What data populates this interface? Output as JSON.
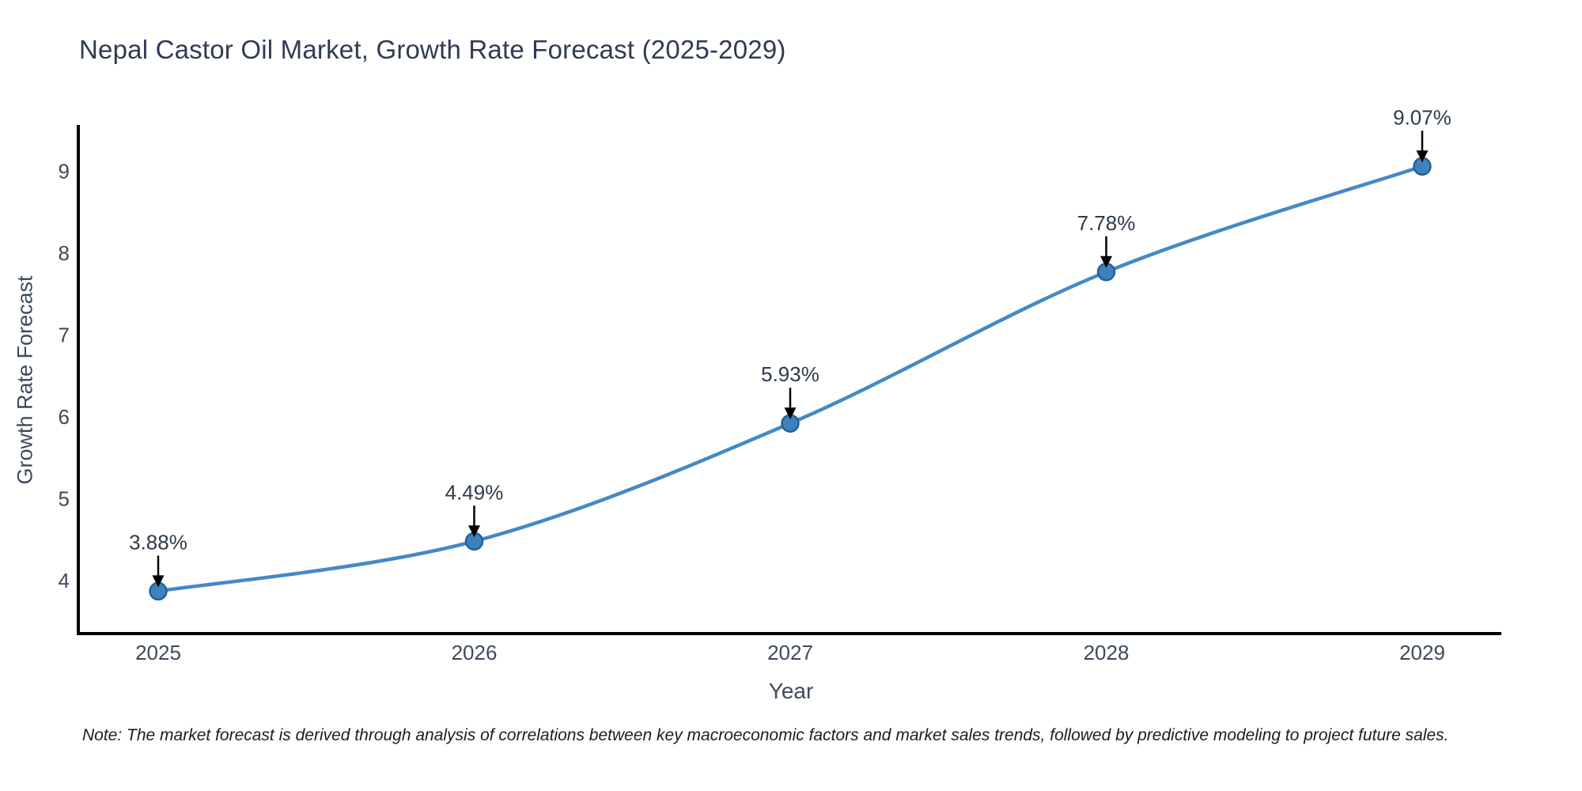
{
  "title": "Nepal Castor Oil Market, Growth Rate Forecast (2025-2029)",
  "note": "Note: The market forecast is derived through analysis of correlations between key macroeconomic factors and market sales trends, followed by predictive modeling to project future sales.",
  "chart_data": {
    "type": "line",
    "title": "Nepal Castor Oil Market, Growth Rate Forecast (2025-2029)",
    "xlabel": "Year",
    "ylabel": "Growth Rate Forecast",
    "categories": [
      "2025",
      "2026",
      "2027",
      "2028",
      "2029"
    ],
    "series": [
      {
        "name": "Growth Rate Forecast",
        "values": [
          3.88,
          4.49,
          5.93,
          7.78,
          9.07
        ]
      }
    ],
    "point_labels": [
      "3.88%",
      "4.49%",
      "5.93%",
      "7.78%",
      "9.07%"
    ],
    "yticks": [
      4,
      5,
      6,
      7,
      8,
      9
    ],
    "ylim": [
      3.4,
      9.6
    ],
    "grid": false,
    "legend": false,
    "line_shape": "spline",
    "markers": true,
    "annotations_with_arrows": true
  },
  "colors": {
    "background": "#ffffff",
    "title": "#2f3b52",
    "axis_line": "#000000",
    "tick_label": "#3d4a5c",
    "line": "#4489c4",
    "marker_fill": "#3d82bd",
    "marker_edge": "#25619b",
    "arrow": "#000000",
    "note_text": "#1a1d21"
  }
}
